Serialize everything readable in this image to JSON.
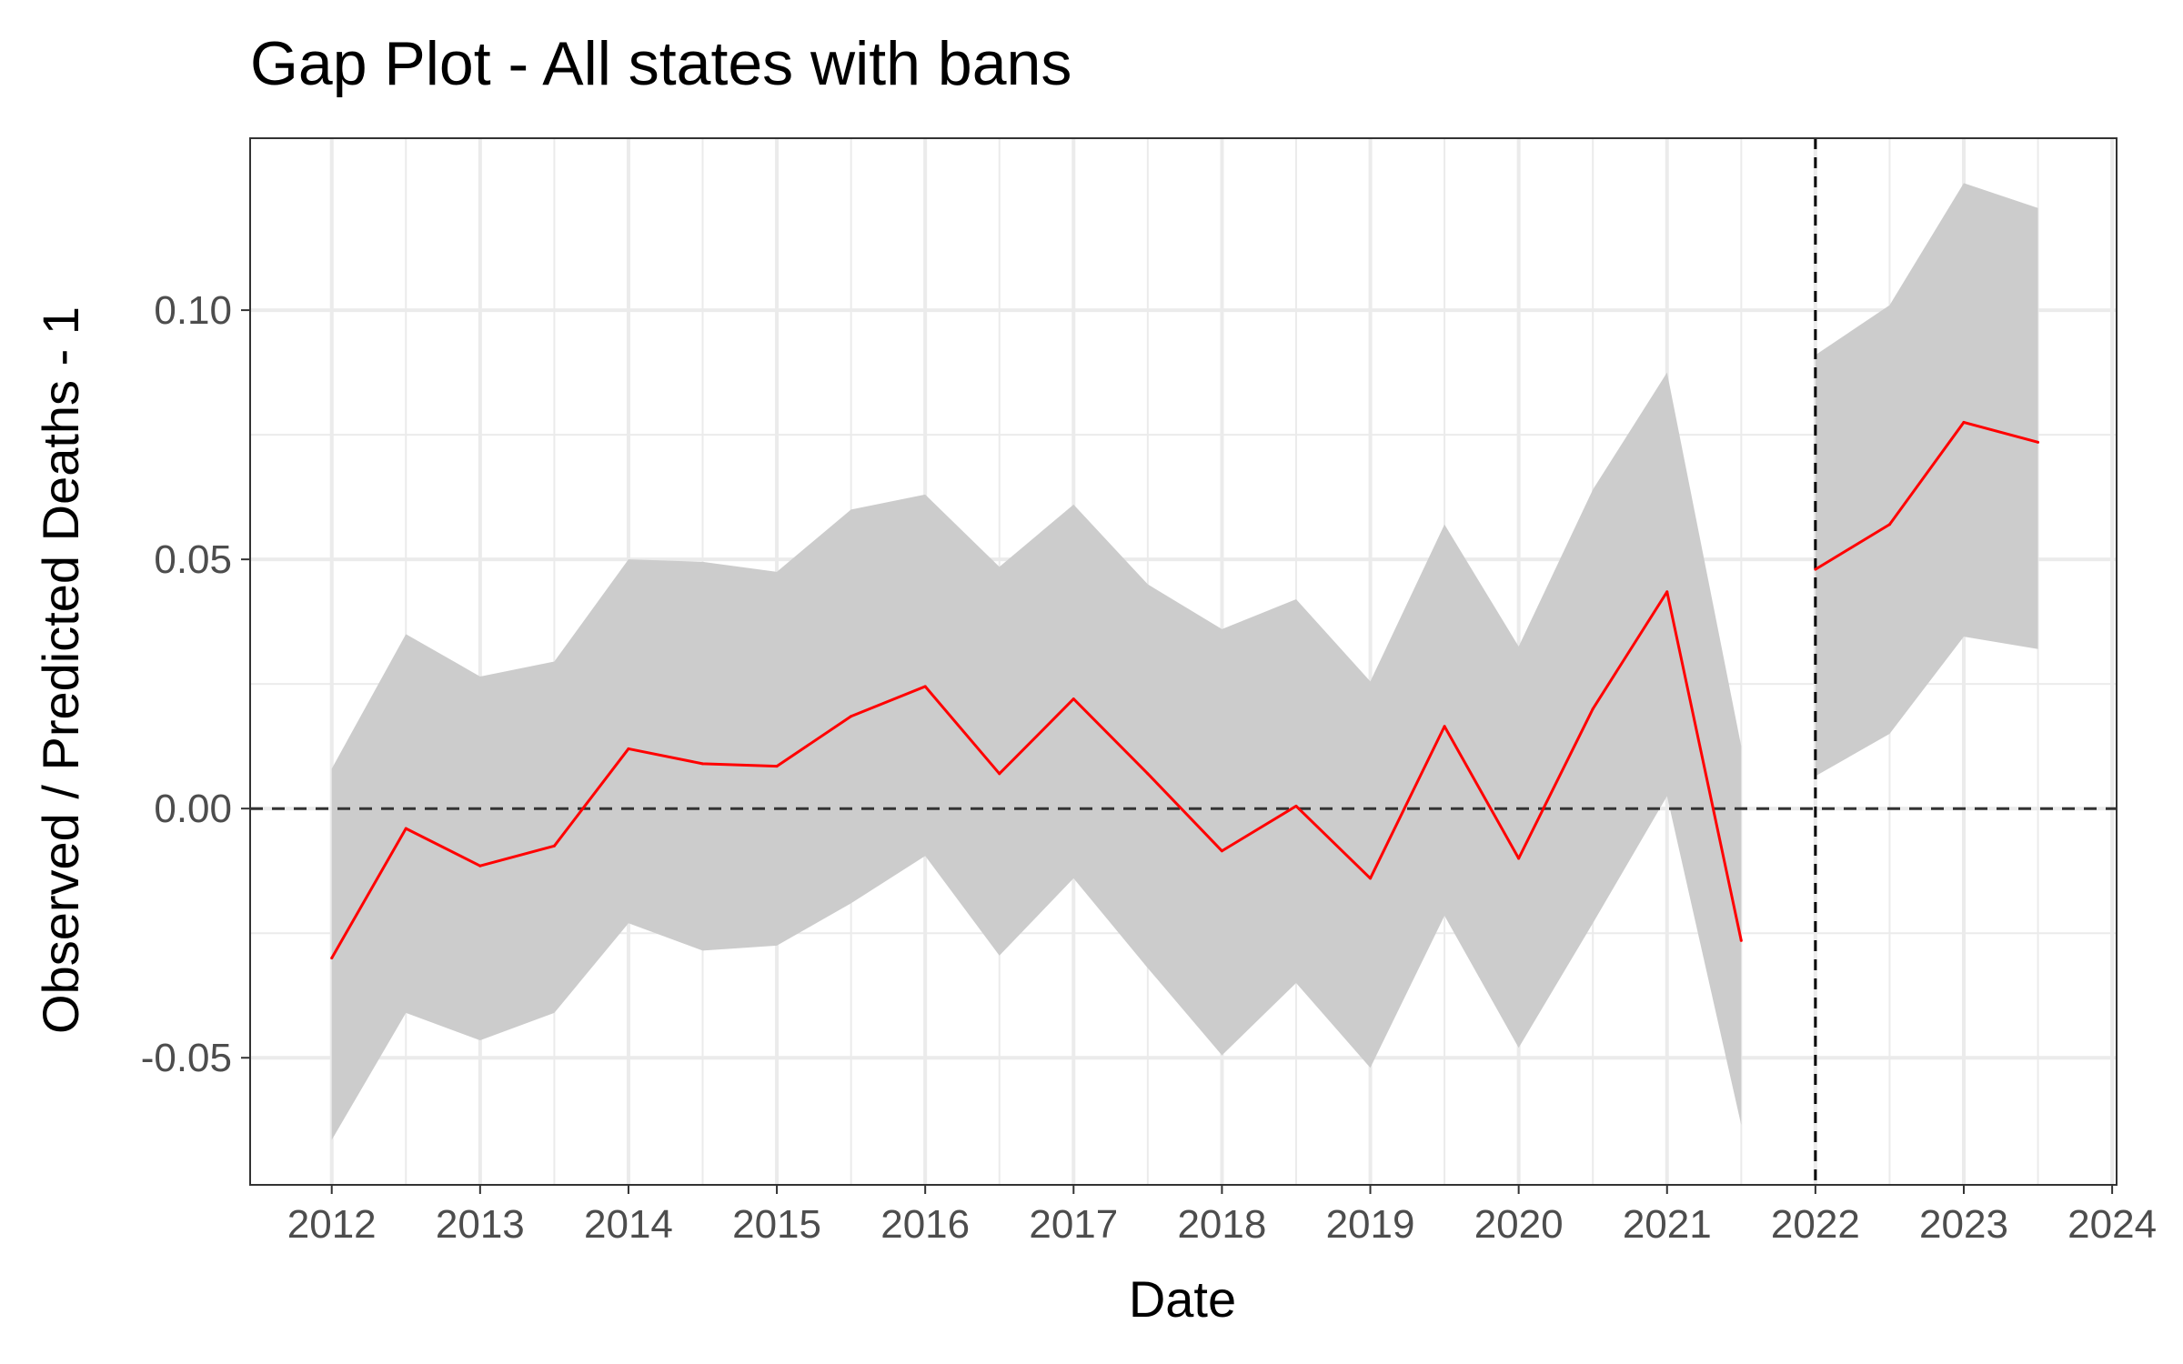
{
  "chart_data": {
    "type": "line",
    "title": "Gap Plot - All states with bans",
    "xlabel": "Date",
    "ylabel": "Observed / Predicted Deaths - 1",
    "xlim": [
      2011.45,
      2024.03
    ],
    "ylim": [
      -0.0755,
      0.1345
    ],
    "x_ticks": [
      2012,
      2013,
      2014,
      2015,
      2016,
      2017,
      2018,
      2019,
      2020,
      2021,
      2022,
      2023,
      2024
    ],
    "x_tick_labels": [
      "2012",
      "2013",
      "2014",
      "2015",
      "2016",
      "2017",
      "2018",
      "2019",
      "2020",
      "2021",
      "2022",
      "2023",
      "2024"
    ],
    "y_ticks": [
      -0.05,
      0.0,
      0.05,
      0.1
    ],
    "y_tick_labels": [
      "-0.05",
      "0.00",
      "0.05",
      "0.10"
    ],
    "grid": true,
    "reference_lines": [
      {
        "orientation": "horizontal",
        "value": 0.0,
        "style": "dashed"
      },
      {
        "orientation": "vertical",
        "value": 2022,
        "style": "dashed"
      }
    ],
    "series": [
      {
        "color": "#ff0000",
        "band_color": "#cccccc",
        "x": [
          2012,
          2012.5,
          2013,
          2013.5,
          2014,
          2014.5,
          2015,
          2015.5,
          2016,
          2016.5,
          2017,
          2017.5,
          2018,
          2018.5,
          2019,
          2019.5,
          2020,
          2020.5,
          2021,
          2021.5
        ],
        "y": [
          -0.03,
          -0.004,
          -0.0115,
          -0.0075,
          0.012,
          0.009,
          0.0085,
          0.0185,
          0.0245,
          0.007,
          0.022,
          0.007,
          -0.0085,
          0.0005,
          -0.014,
          0.0165,
          -0.01,
          0.02,
          0.0435,
          -0.0265
        ],
        "lower": [
          -0.0665,
          -0.041,
          -0.0465,
          -0.041,
          -0.023,
          -0.0285,
          -0.0275,
          -0.019,
          -0.0095,
          -0.0295,
          -0.014,
          -0.032,
          -0.0495,
          -0.035,
          -0.052,
          -0.0215,
          -0.048,
          -0.023,
          0.0025,
          -0.0635
        ],
        "upper": [
          0.008,
          0.035,
          0.0265,
          0.0295,
          0.05,
          0.0495,
          0.0475,
          0.06,
          0.063,
          0.0485,
          0.061,
          0.045,
          0.036,
          0.042,
          0.0255,
          0.057,
          0.0325,
          0.064,
          0.0875,
          0.0125
        ]
      },
      {
        "color": "#ff0000",
        "band_color": "#cccccc",
        "x": [
          2022,
          2022.5,
          2023,
          2023.5
        ],
        "y": [
          0.048,
          0.057,
          0.0775,
          0.0735
        ],
        "lower": [
          0.0065,
          0.015,
          0.0345,
          0.032
        ],
        "upper": [
          0.091,
          0.101,
          0.1255,
          0.1205
        ]
      }
    ]
  }
}
